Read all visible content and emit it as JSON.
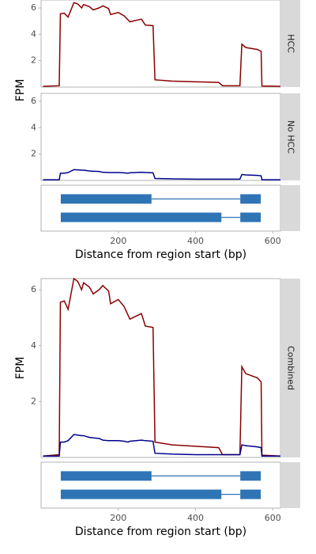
{
  "chart_data": [
    {
      "type": "line",
      "ylabel": "FPM",
      "xlabel": "Distance from region start (bp)",
      "x": [
        5,
        47,
        50,
        60,
        70,
        85,
        95,
        105,
        110,
        125,
        135,
        150,
        160,
        175,
        180,
        200,
        215,
        225,
        230,
        260,
        270,
        290,
        295,
        340,
        400,
        460,
        470,
        515,
        520,
        530,
        560,
        570,
        572,
        620
      ],
      "xlim": [
        0,
        620
      ],
      "xticks": [
        200,
        400,
        600
      ],
      "ylim": [
        0,
        6.6
      ],
      "yticks": [
        2,
        4,
        6
      ],
      "series": [
        {
          "name": "HCC",
          "color": "#8b0000",
          "values": [
            0.05,
            0.1,
            5.55,
            5.6,
            5.3,
            6.4,
            6.3,
            6.0,
            6.25,
            6.1,
            5.85,
            6.0,
            6.15,
            5.95,
            5.5,
            5.65,
            5.4,
            5.1,
            4.95,
            5.15,
            4.7,
            4.65,
            0.55,
            0.45,
            0.4,
            0.35,
            0.1,
            0.1,
            3.25,
            3.0,
            2.85,
            2.7,
            0.08,
            0.05
          ]
        },
        {
          "name": "No HCC",
          "color": "#00008b",
          "values": [
            0.05,
            0.05,
            0.55,
            0.55,
            0.6,
            0.82,
            0.8,
            0.78,
            0.78,
            0.72,
            0.7,
            0.68,
            0.62,
            0.6,
            0.6,
            0.6,
            0.58,
            0.55,
            0.58,
            0.62,
            0.6,
            0.58,
            0.15,
            0.12,
            0.1,
            0.1,
            0.1,
            0.1,
            0.45,
            0.42,
            0.38,
            0.35,
            0.05,
            0.05
          ]
        }
      ],
      "transcripts": [
        {
          "exons": [
            [
              51,
              286
            ],
            [
              516,
              569
            ]
          ]
        },
        {
          "exons": [
            [
              51,
              467
            ],
            [
              516,
              569
            ]
          ]
        }
      ],
      "transcript_color": "#2f74b5"
    },
    {
      "type": "line",
      "ylabel": "FPM",
      "xlabel": "Distance from region start (bp)",
      "strip": "Combined",
      "x": [
        5,
        47,
        50,
        60,
        70,
        85,
        95,
        105,
        110,
        125,
        135,
        150,
        160,
        175,
        180,
        200,
        215,
        225,
        230,
        260,
        270,
        290,
        295,
        340,
        400,
        460,
        470,
        515,
        520,
        530,
        560,
        570,
        572,
        620
      ],
      "xlim": [
        0,
        620
      ],
      "xticks": [
        200,
        400,
        600
      ],
      "ylim": [
        0,
        6.4
      ],
      "yticks": [
        2,
        4,
        6
      ],
      "series": [
        {
          "color": "#8b0000",
          "values": [
            0.05,
            0.1,
            5.55,
            5.6,
            5.3,
            6.4,
            6.3,
            6.0,
            6.25,
            6.1,
            5.85,
            6.0,
            6.15,
            5.95,
            5.5,
            5.65,
            5.4,
            5.1,
            4.95,
            5.15,
            4.7,
            4.65,
            0.55,
            0.45,
            0.4,
            0.35,
            0.1,
            0.1,
            3.25,
            3.0,
            2.85,
            2.7,
            0.08,
            0.05
          ]
        },
        {
          "color": "#00008b",
          "values": [
            0.05,
            0.05,
            0.55,
            0.55,
            0.6,
            0.82,
            0.8,
            0.78,
            0.78,
            0.72,
            0.7,
            0.68,
            0.62,
            0.6,
            0.6,
            0.6,
            0.58,
            0.55,
            0.58,
            0.62,
            0.6,
            0.58,
            0.15,
            0.12,
            0.1,
            0.1,
            0.1,
            0.1,
            0.45,
            0.42,
            0.38,
            0.35,
            0.05,
            0.05
          ]
        }
      ],
      "transcripts": [
        {
          "exons": [
            [
              51,
              286
            ],
            [
              516,
              569
            ]
          ]
        },
        {
          "exons": [
            [
              51,
              467
            ],
            [
              516,
              569
            ]
          ]
        }
      ],
      "transcript_color": "#2f74b5"
    }
  ]
}
